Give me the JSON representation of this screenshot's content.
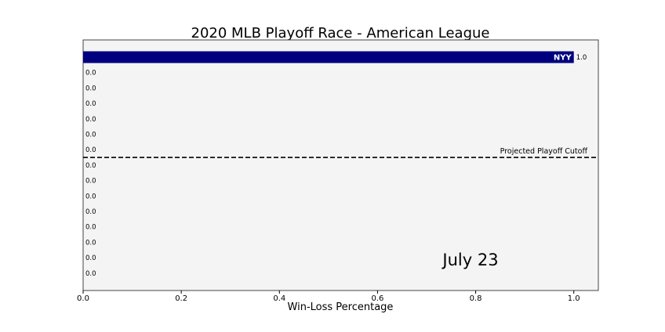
{
  "chart_data": {
    "type": "bar",
    "orientation": "horizontal",
    "title": "2020 MLB Playoff Race - American League",
    "xlabel": "Win-Loss Percentage",
    "ylabel": "",
    "xlim": [
      0,
      1.05
    ],
    "xticks": [
      0.0,
      0.2,
      0.4,
      0.6,
      0.8,
      1.0
    ],
    "xtick_labels": [
      "0.0",
      "0.2",
      "0.4",
      "0.6",
      "0.8",
      "1.0"
    ],
    "categories": [
      "NYY",
      "",
      "",
      "",
      "",
      "",
      "",
      "",
      "",
      "",
      "",
      "",
      "",
      "",
      ""
    ],
    "values": [
      1.0,
      0,
      0,
      0,
      0,
      0,
      0,
      0,
      0,
      0,
      0,
      0,
      0,
      0,
      0
    ],
    "value_labels": [
      "1.0",
      "0.0",
      "0.0",
      "0.0",
      "0.0",
      "0.0",
      "0.0",
      "0.0",
      "0.0",
      "0.0",
      "0.0",
      "0.0",
      "0.0",
      "0.0",
      "0.0"
    ],
    "bar_color": "#00007f",
    "plot_background": "#f4f4f4",
    "cutoff_label": "Projected Playoff Cutoff",
    "cutoff_after_rank": 7,
    "date_label": "July 23",
    "grid": false,
    "legend": "none"
  }
}
